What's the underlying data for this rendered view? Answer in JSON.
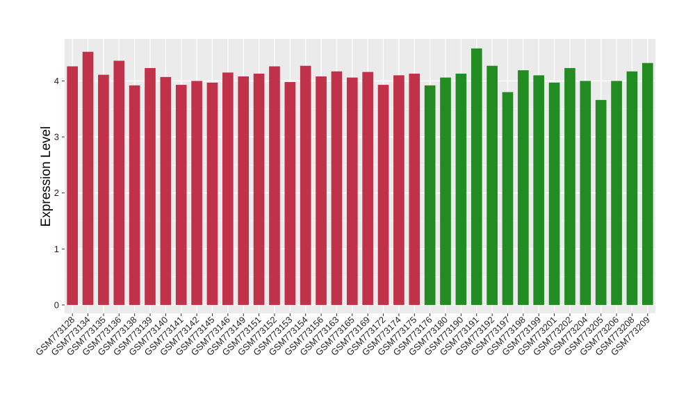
{
  "chart_data": {
    "type": "bar",
    "title": "",
    "xlabel": "",
    "ylabel": "Expression Level",
    "ylim": [
      -0.15,
      4.75
    ],
    "yticks": [
      0,
      1,
      2,
      3,
      4
    ],
    "grid": true,
    "legend": "none",
    "background_color": "#EBEBEB",
    "categories": [
      "GSM773128",
      "GSM773134",
      "GSM773135",
      "GSM773136",
      "GSM773138",
      "GSM773139",
      "GSM773140",
      "GSM773141",
      "GSM773142",
      "GSM773145",
      "GSM773146",
      "GSM773149",
      "GSM773151",
      "GSM773152",
      "GSM773153",
      "GSM773154",
      "GSM773156",
      "GSM773163",
      "GSM773165",
      "GSM773169",
      "GSM773172",
      "GSM773174",
      "GSM773175",
      "GSM773176",
      "GSM773180",
      "GSM773190",
      "GSM773191",
      "GSM773192",
      "GSM773197",
      "GSM773198",
      "GSM773199",
      "GSM773201",
      "GSM773202",
      "GSM773204",
      "GSM773205",
      "GSM773206",
      "GSM773208",
      "GSM773209"
    ],
    "values": [
      4.26,
      4.52,
      4.11,
      4.36,
      3.92,
      4.23,
      4.07,
      3.93,
      4.0,
      3.97,
      4.15,
      4.08,
      4.13,
      4.26,
      3.98,
      4.27,
      4.08,
      4.17,
      4.06,
      4.16,
      3.93,
      4.1,
      4.13,
      3.92,
      4.06,
      4.13,
      4.58,
      4.27,
      3.8,
      4.19,
      4.1,
      3.97,
      4.23,
      4.0,
      3.66,
      4.0,
      4.17,
      4.32
    ],
    "bar_colors": [
      "#C0314A",
      "#C0314A",
      "#C0314A",
      "#C0314A",
      "#C0314A",
      "#C0314A",
      "#C0314A",
      "#C0314A",
      "#C0314A",
      "#C0314A",
      "#C0314A",
      "#C0314A",
      "#C0314A",
      "#C0314A",
      "#C0314A",
      "#C0314A",
      "#C0314A",
      "#C0314A",
      "#C0314A",
      "#C0314A",
      "#C0314A",
      "#C0314A",
      "#C0314A",
      "#228B22",
      "#228B22",
      "#228B22",
      "#228B22",
      "#228B22",
      "#228B22",
      "#228B22",
      "#228B22",
      "#228B22",
      "#228B22",
      "#228B22",
      "#228B22",
      "#228B22",
      "#228B22",
      "#228B22"
    ]
  }
}
